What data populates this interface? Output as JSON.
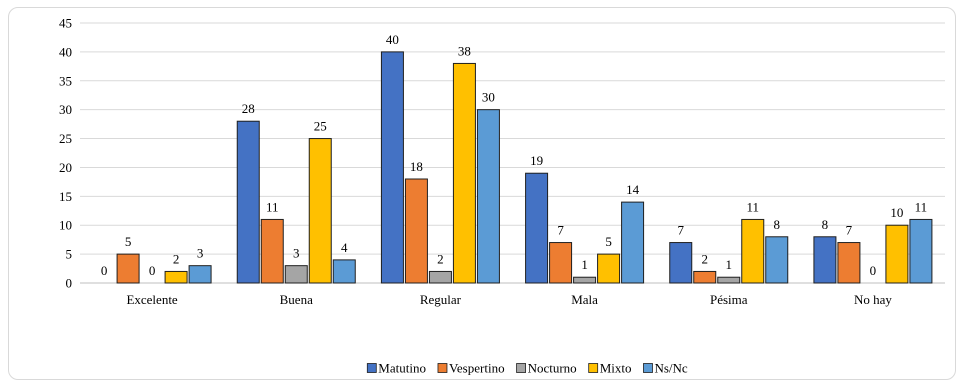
{
  "chart_data": {
    "type": "bar",
    "categories": [
      "Excelente",
      "Buena",
      "Regular",
      "Mala",
      "Pésima",
      "No hay"
    ],
    "series": [
      {
        "name": "Matutino",
        "values": [
          0,
          28,
          40,
          19,
          7,
          8
        ],
        "color": "#4472C4"
      },
      {
        "name": "Vespertino",
        "values": [
          5,
          11,
          18,
          7,
          2,
          7
        ],
        "color": "#ED7D31"
      },
      {
        "name": "Nocturno",
        "values": [
          0,
          3,
          2,
          1,
          1,
          0
        ],
        "color": "#A5A5A5"
      },
      {
        "name": "Mixto",
        "values": [
          2,
          25,
          38,
          5,
          11,
          10
        ],
        "color": "#FFC000"
      },
      {
        "name": "Ns/Nc",
        "values": [
          3,
          4,
          30,
          14,
          8,
          11
        ],
        "color": "#5B9BD5"
      }
    ],
    "yticks": [
      0,
      5,
      10,
      15,
      20,
      25,
      30,
      35,
      40,
      45
    ],
    "ylim": [
      0,
      45
    ],
    "grid": true,
    "legend_position": "bottom"
  }
}
